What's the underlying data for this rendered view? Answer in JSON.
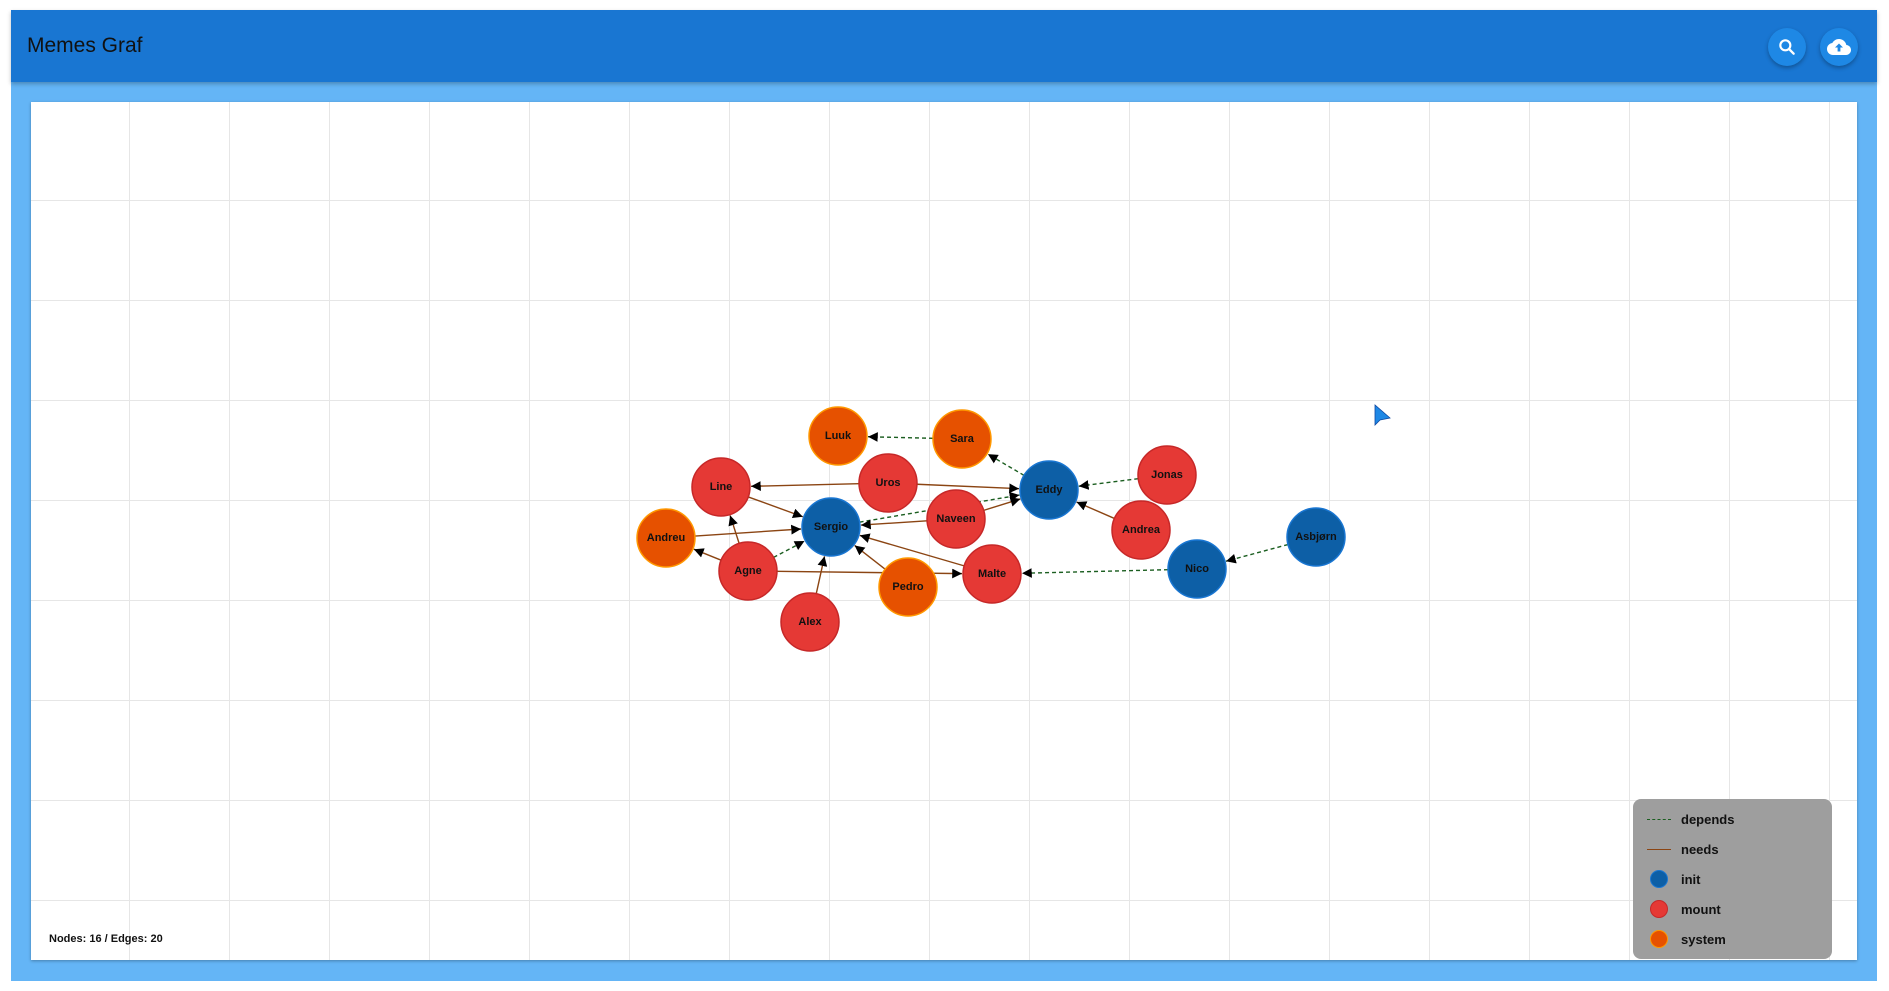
{
  "app": {
    "title": "Memes Graf",
    "search_icon": "search-icon",
    "upload_icon": "cloud-upload-icon"
  },
  "colors": {
    "appbar": "#1976d2",
    "background": "#64b5f6",
    "init": "#0d5fa6",
    "mount": "#e53935",
    "system": "#e65100",
    "depends": "#1b5e20",
    "needs": "#8b4513",
    "legend_bg": "#9e9e9e"
  },
  "graph": {
    "stats": "Nodes: 16 / Edges: 20",
    "nodes": [
      {
        "id": "Luuk",
        "type": "system"
      },
      {
        "id": "Sara",
        "type": "system"
      },
      {
        "id": "Uros",
        "type": "mount"
      },
      {
        "id": "Line",
        "type": "mount"
      },
      {
        "id": "Eddy",
        "type": "init"
      },
      {
        "id": "Jonas",
        "type": "mount"
      },
      {
        "id": "Naveen",
        "type": "mount"
      },
      {
        "id": "Sergio",
        "type": "init"
      },
      {
        "id": "Andreu",
        "type": "system"
      },
      {
        "id": "Andrea",
        "type": "mount"
      },
      {
        "id": "Asbjørn",
        "type": "init"
      },
      {
        "id": "Agne",
        "type": "mount"
      },
      {
        "id": "Nico",
        "type": "init"
      },
      {
        "id": "Malte",
        "type": "mount"
      },
      {
        "id": "Pedro",
        "type": "system"
      },
      {
        "id": "Alex",
        "type": "mount"
      }
    ],
    "edges": [
      {
        "from": "Sara",
        "to": "Luuk",
        "type": "depends"
      },
      {
        "from": "Eddy",
        "to": "Sara",
        "type": "depends"
      },
      {
        "from": "Uros",
        "to": "Line",
        "type": "needs"
      },
      {
        "from": "Uros",
        "to": "Eddy",
        "type": "needs"
      },
      {
        "from": "Jonas",
        "to": "Eddy",
        "type": "depends"
      },
      {
        "from": "Andrea",
        "to": "Eddy",
        "type": "needs"
      },
      {
        "from": "Naveen",
        "to": "Eddy",
        "type": "needs"
      },
      {
        "from": "Sergio",
        "to": "Eddy",
        "type": "depends"
      },
      {
        "from": "Naveen",
        "to": "Sergio",
        "type": "needs"
      },
      {
        "from": "Line",
        "to": "Sergio",
        "type": "needs"
      },
      {
        "from": "Andreu",
        "to": "Sergio",
        "type": "needs"
      },
      {
        "from": "Agne",
        "to": "Line",
        "type": "needs"
      },
      {
        "from": "Agne",
        "to": "Andreu",
        "type": "needs"
      },
      {
        "from": "Agne",
        "to": "Sergio",
        "type": "depends"
      },
      {
        "from": "Agne",
        "to": "Malte",
        "type": "needs"
      },
      {
        "from": "Alex",
        "to": "Sergio",
        "type": "needs"
      },
      {
        "from": "Pedro",
        "to": "Sergio",
        "type": "needs"
      },
      {
        "from": "Malte",
        "to": "Sergio",
        "type": "needs"
      },
      {
        "from": "Nico",
        "to": "Malte",
        "type": "depends"
      },
      {
        "from": "Asbjørn",
        "to": "Nico",
        "type": "depends"
      }
    ]
  },
  "legend": {
    "items": [
      {
        "label": "depends",
        "kind": "line",
        "style": "dashed",
        "color": "#1b5e20"
      },
      {
        "label": "needs",
        "kind": "line",
        "style": "solid",
        "color": "#8b4513"
      },
      {
        "label": "init",
        "kind": "dot",
        "color": "#0d5fa6"
      },
      {
        "label": "mount",
        "kind": "dot",
        "color": "#e53935"
      },
      {
        "label": "system",
        "kind": "dot",
        "color": "#e65100"
      }
    ]
  }
}
